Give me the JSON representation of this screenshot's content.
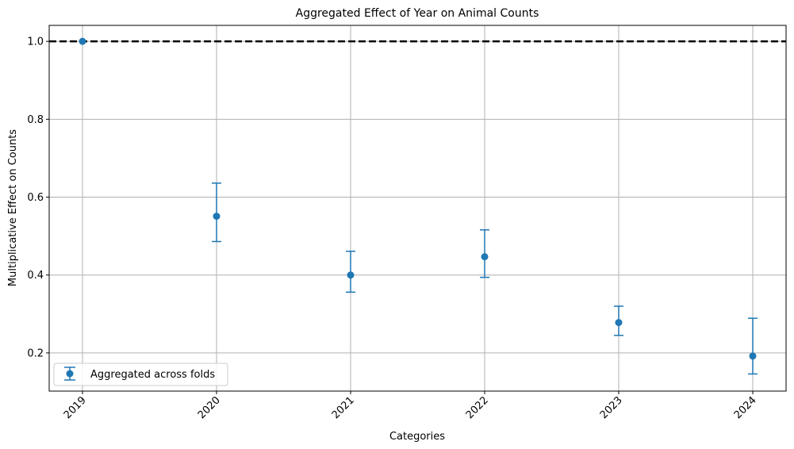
{
  "chart_data": {
    "type": "scatter",
    "title": "Aggregated Effect of Year on Animal Counts",
    "xlabel": "Categories",
    "ylabel": "Multiplicative Effect on Counts",
    "categories": [
      "2019",
      "2020",
      "2021",
      "2022",
      "2023",
      "2024"
    ],
    "series": [
      {
        "name": "Aggregated across folds",
        "values": [
          1.0,
          0.551,
          0.4,
          0.447,
          0.278,
          0.192
        ],
        "lower": [
          1.0,
          0.486,
          0.356,
          0.394,
          0.245,
          0.146
        ],
        "upper": [
          1.0,
          0.636,
          0.461,
          0.516,
          0.32,
          0.289
        ]
      }
    ],
    "reference_line": {
      "y": 1.0,
      "style": "dashed",
      "color": "#000000"
    },
    "yticks": [
      0.2,
      0.4,
      0.6,
      0.8,
      1.0
    ],
    "ylim": [
      0.102,
      1.041
    ],
    "grid": true,
    "legend_position": "lower-left",
    "colors": {
      "series": "#1f77b4",
      "grid": "#b0b0b0",
      "axes": "#000000"
    }
  }
}
